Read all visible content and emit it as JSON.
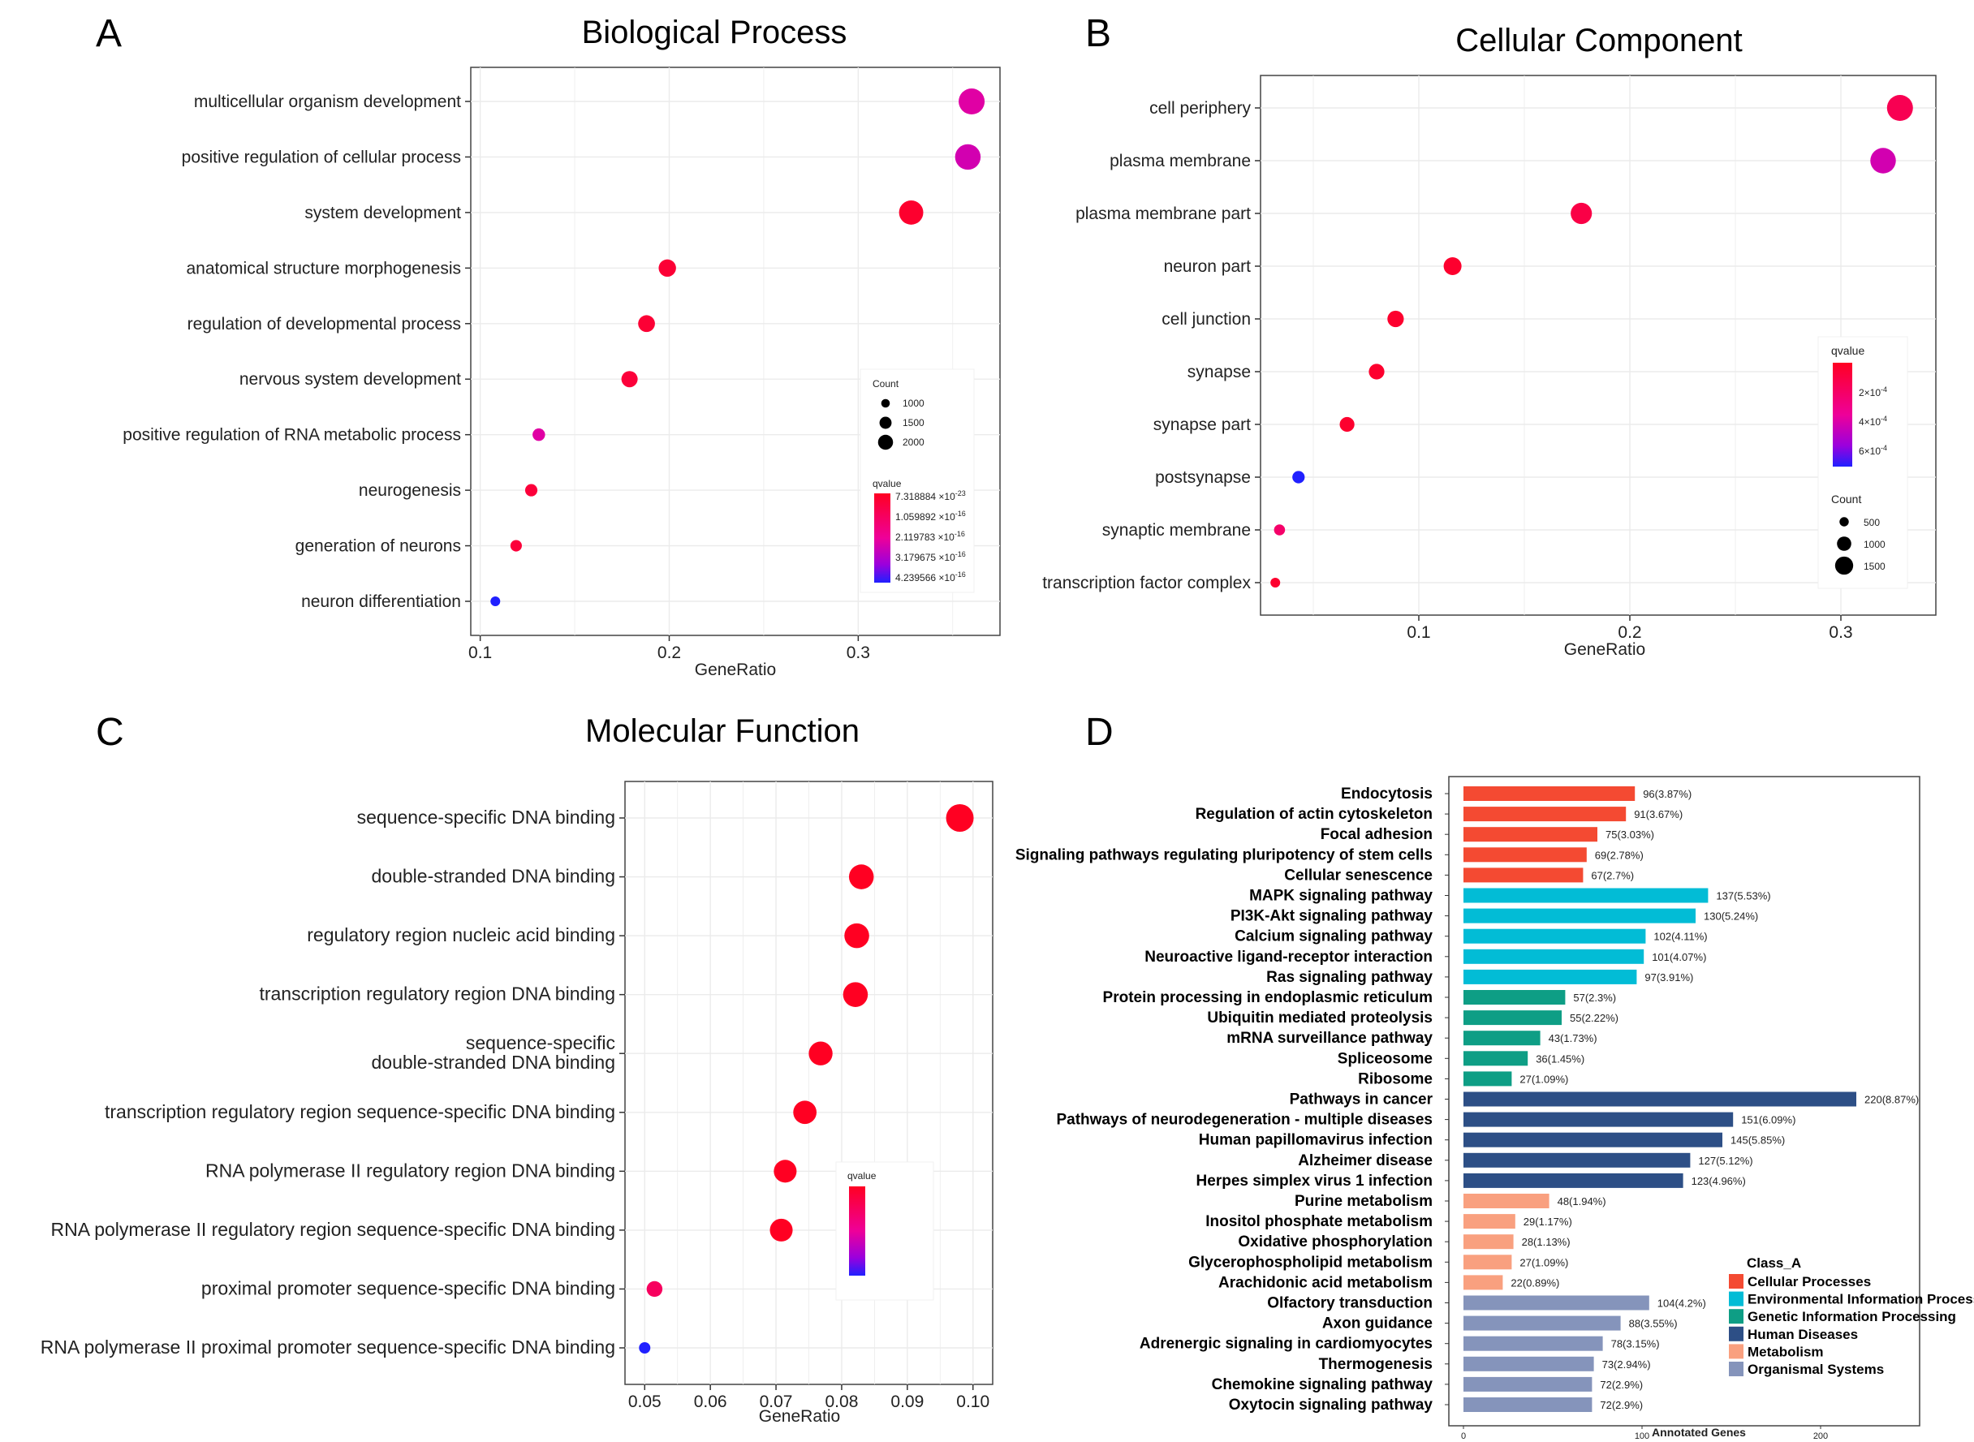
{
  "labels": {
    "a": "A",
    "b": "B",
    "c": "C",
    "d": "D"
  },
  "chart_data": [
    {
      "id": "A",
      "type": "scatter",
      "title": "Biological Process",
      "xlabel": "GeneRatio",
      "ylabel": "",
      "xlim": [
        0.095,
        0.375
      ],
      "xticks": [
        0.1,
        0.2,
        0.3
      ],
      "xtick_labels": [
        "0.1",
        "0.2",
        "0.3"
      ],
      "categories": [
        "multicellular organism development",
        "positive regulation of cellular process",
        "system development",
        "anatomical structure morphogenesis",
        "regulation of developmental process",
        "nervous system development",
        "positive regulation of RNA metabolic process",
        "neurogenesis",
        "generation of neurons",
        "neuron differentiation"
      ],
      "x": [
        0.36,
        0.358,
        0.328,
        0.199,
        0.188,
        0.179,
        0.131,
        0.127,
        0.119,
        0.108
      ],
      "count": [
        2200,
        2150,
        2000,
        1300,
        1250,
        1200,
        900,
        880,
        820,
        700
      ],
      "qcolor_t": [
        0.55,
        0.6,
        0.05,
        0.08,
        0.08,
        0.1,
        0.55,
        0.1,
        0.1,
        1.0
      ],
      "legend": {
        "count_title": "Count",
        "count_values": [
          1000,
          1500,
          2000
        ],
        "count_labels": [
          "1000",
          "1500",
          "2000"
        ],
        "q_title": "qvalue",
        "q_labels": [
          "7.318884 ×10^-23",
          "1.059892 ×10^-16",
          "2.119783 ×10^-16",
          "3.179675 ×10^-16",
          "4.239566 ×10^-16"
        ]
      }
    },
    {
      "id": "B",
      "type": "scatter",
      "title": "Cellular Component",
      "xlabel": "GeneRatio",
      "ylabel": "",
      "xlim": [
        0.025,
        0.345
      ],
      "xticks": [
        0.1,
        0.2,
        0.3
      ],
      "xtick_labels": [
        "0.1",
        "0.2",
        "0.3"
      ],
      "categories": [
        "cell periphery",
        "plasma membrane",
        "plasma membrane part",
        "neuron part",
        "cell junction",
        "synapse",
        "synapse part",
        "postsynapse",
        "synaptic membrane",
        "transcription factor complex"
      ],
      "x": [
        0.328,
        0.32,
        0.177,
        0.116,
        0.089,
        0.08,
        0.066,
        0.043,
        0.034,
        0.032
      ],
      "count": [
        1700,
        1650,
        1200,
        900,
        780,
        720,
        660,
        500,
        420,
        350
      ],
      "qcolor_t": [
        0.2,
        0.6,
        0.15,
        0.05,
        0.05,
        0.05,
        0.05,
        1.0,
        0.3,
        0.05
      ],
      "legend": {
        "q_title": "qvalue",
        "q_labels": [
          "2×10^-4",
          "4×10^-4",
          "6×10^-4"
        ],
        "count_title": "Count",
        "count_values": [
          500,
          1000,
          1500
        ],
        "count_labels": [
          "500",
          "1000",
          "1500"
        ]
      }
    },
    {
      "id": "C",
      "type": "scatter",
      "title": "Molecular Function",
      "xlabel": "GeneRatio",
      "ylabel": "",
      "xlim": [
        0.047,
        0.103
      ],
      "xticks": [
        0.05,
        0.06,
        0.07,
        0.08,
        0.09,
        0.1
      ],
      "xtick_labels": [
        "0.05",
        "0.06",
        "0.07",
        "0.08",
        "0.09",
        "0.10"
      ],
      "categories": [
        "sequence-specific DNA binding",
        "double-stranded DNA binding",
        "regulatory region nucleic acid binding",
        "transcription regulatory region DNA binding",
        "sequence-specific\ndouble-stranded DNA binding",
        "transcription regulatory region sequence-specific DNA binding",
        "RNA polymerase II regulatory region DNA binding",
        "RNA polymerase II regulatory region sequence-specific DNA binding",
        "proximal promoter sequence-specific DNA binding",
        "RNA polymerase II proximal promoter sequence-specific DNA binding"
      ],
      "x": [
        0.098,
        0.083,
        0.0823,
        0.0821,
        0.0768,
        0.0744,
        0.0714,
        0.0708,
        0.0515,
        0.05
      ],
      "count": [
        2000,
        1700,
        1700,
        1700,
        1600,
        1550,
        1500,
        1500,
        900,
        600
      ],
      "qcolor_t": [
        0.0,
        0.0,
        0.0,
        0.0,
        0.0,
        0.0,
        0.0,
        0.0,
        0.25,
        1.0
      ],
      "legend": {
        "q_title": "qvalue"
      }
    },
    {
      "id": "D",
      "type": "bar",
      "orientation": "horizontal",
      "xlabel": "Annotated Genes",
      "ylabel": "",
      "xlim": [
        0,
        250
      ],
      "xticks": [
        0,
        100,
        200
      ],
      "xtick_labels": [
        "0",
        "100",
        "200"
      ],
      "categories": [
        "Endocytosis",
        "Regulation of actin cytoskeleton",
        "Focal adhesion",
        "Signaling pathways regulating pluripotency of stem cells",
        "Cellular senescence",
        "MAPK signaling pathway",
        "PI3K-Akt signaling pathway",
        "Calcium signaling pathway",
        "Neuroactive ligand-receptor interaction",
        "Ras signaling pathway",
        "Protein processing in endoplasmic reticulum",
        "Ubiquitin mediated proteolysis",
        "mRNA surveillance pathway",
        "Spliceosome",
        "Ribosome",
        "Pathways in cancer",
        "Pathways of neurodegeneration - multiple diseases",
        "Human papillomavirus infection",
        "Alzheimer disease",
        "Herpes simplex virus 1 infection",
        "Purine metabolism",
        "Inositol phosphate metabolism",
        "Oxidative phosphorylation",
        "Glycerophospholipid metabolism",
        "Arachidonic acid metabolism",
        "Olfactory transduction",
        "Axon guidance",
        "Adrenergic signaling in cardiomyocytes",
        "Thermogenesis",
        "Chemokine signaling pathway",
        "Oxytocin signaling pathway"
      ],
      "values": [
        96,
        91,
        75,
        69,
        67,
        137,
        130,
        102,
        101,
        97,
        57,
        55,
        43,
        36,
        27,
        220,
        151,
        145,
        127,
        123,
        48,
        29,
        28,
        27,
        22,
        104,
        88,
        78,
        73,
        72,
        72
      ],
      "value_labels": [
        "96(3.87%)",
        "91(3.67%)",
        "75(3.03%)",
        "69(2.78%)",
        "67(2.7%)",
        "137(5.53%)",
        "130(5.24%)",
        "102(4.11%)",
        "101(4.07%)",
        "97(3.91%)",
        "57(2.3%)",
        "55(2.22%)",
        "43(1.73%)",
        "36(1.45%)",
        "27(1.09%)",
        "220(8.87%)",
        "151(6.09%)",
        "145(5.85%)",
        "127(5.12%)",
        "123(4.96%)",
        "48(1.94%)",
        "29(1.17%)",
        "28(1.13%)",
        "27(1.09%)",
        "22(0.89%)",
        "104(4.2%)",
        "88(3.55%)",
        "78(3.15%)",
        "73(2.94%)",
        "72(2.9%)",
        "72(2.9%)"
      ],
      "class_index": [
        0,
        0,
        0,
        0,
        0,
        1,
        1,
        1,
        1,
        1,
        2,
        2,
        2,
        2,
        2,
        3,
        3,
        3,
        3,
        3,
        4,
        4,
        4,
        4,
        4,
        5,
        5,
        5,
        5,
        5,
        5
      ],
      "legend": {
        "title": "Class_A",
        "position": "bottom-right",
        "classes": [
          "Cellular Processes",
          "Environmental Information Processing",
          "Genetic Information Processing",
          "Human Diseases",
          "Metabolism",
          "Organismal Systems"
        ],
        "colors": [
          "#f44a32",
          "#02bcd6",
          "#0e9e85",
          "#2d4f86",
          "#f9a07f",
          "#8594bb"
        ]
      }
    }
  ]
}
